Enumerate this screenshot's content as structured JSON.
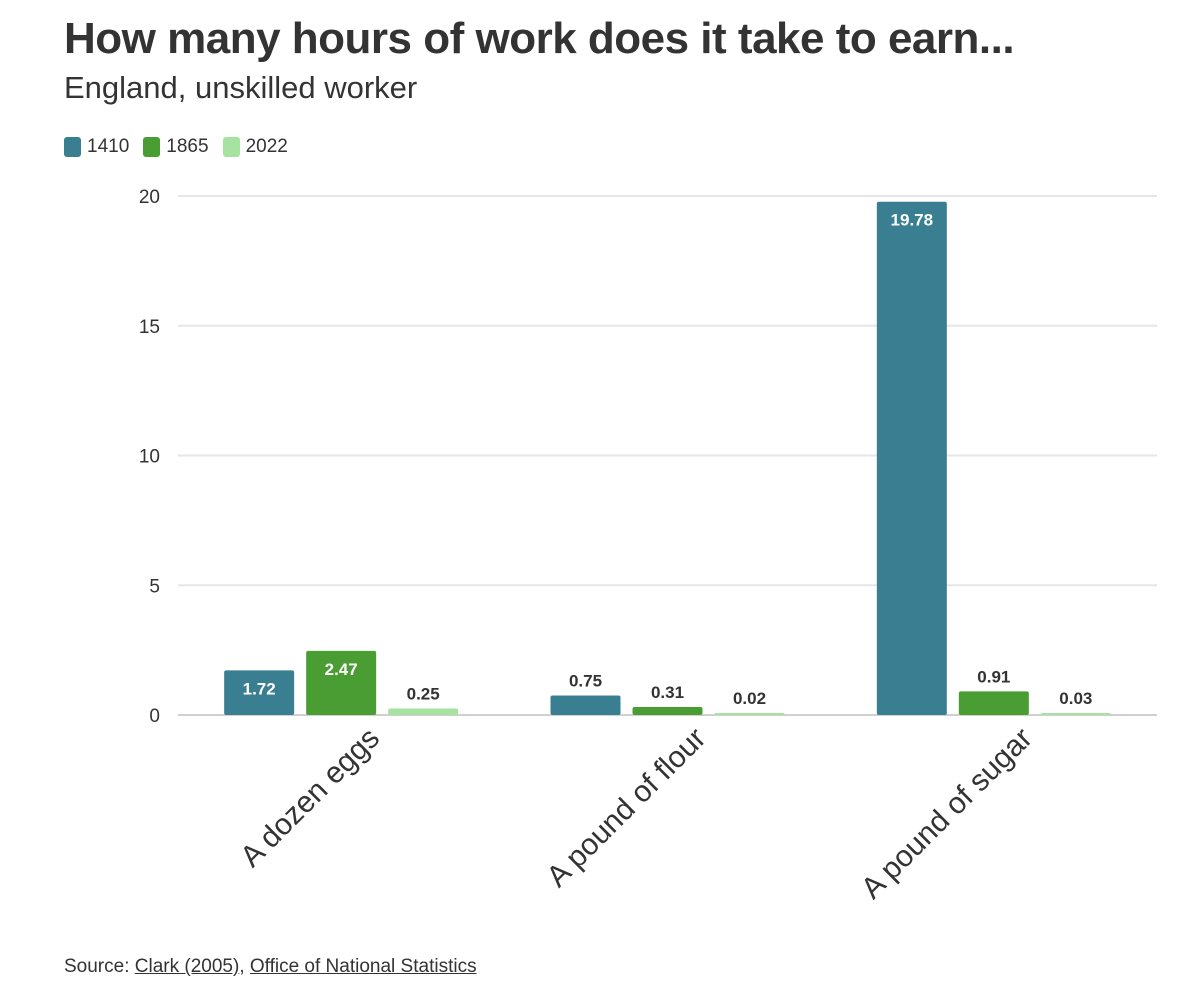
{
  "header": {
    "title": "How many hours of work does it take to earn...",
    "subtitle": "England, unskilled worker"
  },
  "legend": [
    {
      "label": "1410",
      "color": "#3a7f91"
    },
    {
      "label": "1865",
      "color": "#4a9d33"
    },
    {
      "label": "2022",
      "color": "#a6e3a1"
    }
  ],
  "source": {
    "prefix": "Source: ",
    "link1": "Clark (2005)",
    "separator": ", ",
    "link2": "Office of National Statistics"
  },
  "chart_data": {
    "type": "bar",
    "categories": [
      "A dozen eggs",
      "A pound of flour",
      "A pound of sugar"
    ],
    "series": [
      {
        "name": "1410",
        "color": "#3a7f91",
        "values": [
          1.72,
          0.75,
          19.78
        ]
      },
      {
        "name": "1865",
        "color": "#4a9d33",
        "values": [
          2.47,
          0.31,
          0.91
        ]
      },
      {
        "name": "2022",
        "color": "#a6e3a1",
        "values": [
          0.25,
          0.02,
          0.03
        ]
      }
    ],
    "ylim": [
      0,
      20
    ],
    "yticks": [
      0,
      5,
      10,
      15,
      20
    ],
    "grid": true,
    "legend_position": "top-left"
  }
}
